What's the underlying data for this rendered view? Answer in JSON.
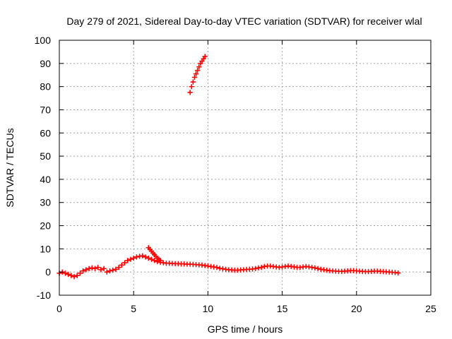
{
  "chart_data": {
    "type": "scatter",
    "title": "Day 279 of 2021, Sidereal Day-to-day VTEC variation (SDTVAR) for receiver wlal",
    "xlabel": "GPS time / hours",
    "ylabel": "SDTVAR / TECUs",
    "xlim": [
      0,
      25
    ],
    "ylim": [
      -10,
      100
    ],
    "xticks": [
      "0",
      "5",
      "10",
      "15",
      "20",
      "25"
    ],
    "yticks": [
      "-10",
      "0",
      "10",
      "20",
      "30",
      "40",
      "50",
      "60",
      "70",
      "80",
      "90",
      "100"
    ],
    "grid": true,
    "color": "#ff0000",
    "marker": "plus",
    "series": [
      {
        "x": [
          0.0,
          0.2,
          0.4,
          0.6,
          0.8,
          1.0,
          1.2,
          1.4,
          1.6,
          1.8,
          2.0,
          2.2,
          2.4,
          2.6,
          2.8,
          3.0,
          3.2,
          3.4,
          3.6,
          3.8,
          4.0,
          4.2,
          4.4,
          4.6,
          4.8,
          5.0,
          5.2,
          5.4,
          5.6,
          5.8,
          6.0,
          6.2,
          6.4,
          6.6,
          6.8,
          7.0,
          7.2,
          7.4,
          7.6,
          7.8,
          8.0,
          8.2,
          8.4,
          8.6,
          8.8,
          9.0,
          9.2,
          9.4,
          9.6,
          9.8,
          10.0,
          10.2,
          10.4,
          10.6,
          10.8,
          11.0,
          11.2,
          11.4,
          11.6,
          11.8,
          12.0,
          12.2,
          12.4,
          12.6,
          12.8,
          13.0,
          13.2,
          13.4,
          13.6,
          13.8,
          14.0,
          14.2,
          14.4,
          14.6,
          14.8,
          15.0,
          15.2,
          15.4,
          15.6,
          15.8,
          16.0,
          16.2,
          16.4,
          16.6,
          16.8,
          17.0,
          17.2,
          17.4,
          17.6,
          17.8,
          18.0,
          18.2,
          18.4,
          18.6,
          18.8,
          19.0,
          19.2,
          19.4,
          19.6,
          19.8,
          20.0,
          20.2,
          20.4,
          20.6,
          20.8,
          21.0,
          21.2,
          21.4,
          21.6,
          21.8,
          22.0,
          22.2,
          22.4,
          22.6,
          22.8
        ],
        "y": [
          -0.5,
          0.0,
          -0.5,
          -1.0,
          -1.5,
          -2.0,
          -1.5,
          -0.5,
          0.5,
          1.0,
          1.5,
          1.8,
          1.5,
          2.0,
          1.0,
          1.5,
          0.0,
          0.5,
          0.8,
          1.2,
          2.0,
          3.0,
          4.0,
          5.0,
          5.5,
          6.0,
          6.5,
          6.8,
          7.0,
          6.5,
          6.0,
          5.5,
          5.0,
          4.5,
          4.2,
          4.0,
          3.8,
          3.8,
          3.7,
          3.6,
          3.6,
          3.5,
          3.5,
          3.4,
          3.4,
          3.3,
          3.2,
          3.1,
          3.0,
          2.8,
          2.6,
          2.4,
          2.2,
          2.0,
          1.6,
          1.4,
          1.2,
          1.0,
          0.9,
          0.8,
          0.8,
          0.9,
          1.0,
          1.1,
          1.2,
          1.3,
          1.5,
          1.8,
          2.0,
          2.4,
          2.6,
          2.6,
          2.4,
          2.2,
          2.0,
          2.2,
          2.4,
          2.6,
          2.4,
          2.2,
          2.0,
          2.0,
          2.2,
          2.4,
          2.2,
          2.0,
          1.8,
          1.5,
          1.2,
          1.0,
          0.8,
          0.6,
          0.5,
          0.4,
          0.3,
          0.3,
          0.4,
          0.5,
          0.6,
          0.6,
          0.5,
          0.4,
          0.3,
          0.2,
          0.2,
          0.3,
          0.4,
          0.4,
          0.3,
          0.2,
          0.1,
          0.0,
          -0.1,
          -0.2,
          -0.4
        ]
      },
      {
        "x": [
          6.0,
          6.1,
          6.2,
          6.3,
          6.4,
          6.5,
          6.6,
          6.7,
          6.8
        ],
        "y": [
          10.5,
          9.8,
          9.0,
          8.2,
          7.5,
          6.8,
          6.0,
          5.5,
          5.0
        ]
      },
      {
        "x": [
          8.8,
          8.9,
          9.0,
          9.1,
          9.2,
          9.3,
          9.4,
          9.5,
          9.6,
          9.7,
          9.8
        ],
        "y": [
          77.5,
          80.0,
          82.0,
          84.0,
          85.5,
          87.0,
          88.5,
          90.0,
          91.0,
          92.0,
          93.0
        ]
      }
    ]
  }
}
